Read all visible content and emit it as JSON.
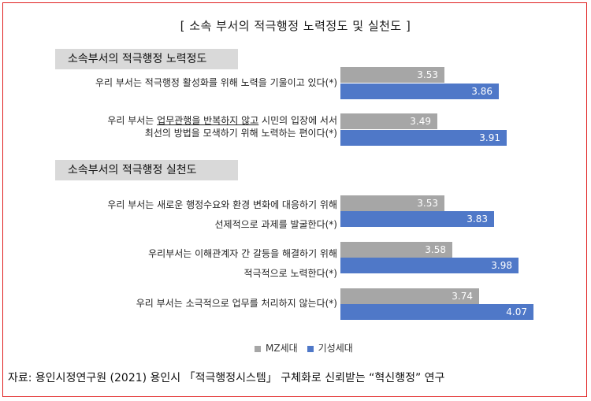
{
  "title": "[ 소속 부서의 적극행정 노력정도 및 실천도 ]",
  "sections": [
    {
      "label": "소속부서의 적극행정 노력정도"
    },
    {
      "label": "소속부서의 적극행정 실천도"
    }
  ],
  "questions": [
    {
      "line1": "우리 부서는 적극행정 활성화를 위해 노력을 기울이고 있다(*)",
      "line2": ""
    },
    {
      "line1_pre": "우리 부서는 ",
      "line1_u": "업무관행을 반복하지 않고",
      "line1_post": " 시민의 입장에 서서",
      "line2": "최선의 방법을 모색하기 위해 노력하는 편이다(*)"
    },
    {
      "line1": "우리 부서는 새로운 행정수요와 환경 변화에 대응하기 위해",
      "line2": "선제적으로 과제를 발굴한다(*)"
    },
    {
      "line1": "우리부서는 이해관계자 간 갈등을 해결하기 위해",
      "line2": "적극적으로 노력한다(*)"
    },
    {
      "line1": "우리 부서는 소극적으로 업무를 처리하지 않는다(*)",
      "line2": ""
    }
  ],
  "legend": {
    "mz": "MZ세대",
    "gs": "기성세대"
  },
  "colors": {
    "mz": "#a6a6a6",
    "gs": "#4f78c8"
  },
  "source": "자료: 용인시정연구원 (2021) 용인시 「적극행정시스템」 구체화로 신뢰받는 “혁신행정” 연구",
  "chart_data": {
    "type": "bar",
    "orientation": "horizontal",
    "title": "[ 소속 부서의 적극행정 노력정도 및 실천도 ]",
    "groups": [
      "소속부서의 적극행정 노력정도",
      "소속부서의 적극행정 실천도"
    ],
    "categories": [
      "우리 부서는 적극행정 활성화를 위해 노력을 기울이고 있다(*)",
      "우리 부서는 업무관행을 반복하지 않고 시민의 입장에 서서 최선의 방법을 모색하기 위해 노력하는 편이다(*)",
      "우리 부서는 새로운 행정수요와 환경 변화에 대응하기 위해 선제적으로 과제를 발굴한다(*)",
      "우리부서는 이해관계자 간 갈등을 해결하기 위해 적극적으로 노력한다(*)",
      "우리 부서는 소극적으로 업무를 처리하지 않는다(*)"
    ],
    "series": [
      {
        "name": "MZ세대",
        "values": [
          3.53,
          3.49,
          3.53,
          3.58,
          3.74
        ]
      },
      {
        "name": "기성세대",
        "values": [
          3.86,
          3.91,
          3.83,
          3.98,
          4.07
        ]
      }
    ],
    "xlim": [
      2.9,
      4.2
    ],
    "legend_position": "bottom"
  }
}
